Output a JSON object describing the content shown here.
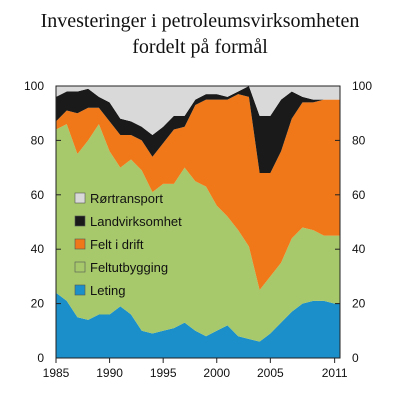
{
  "chart_data": {
    "type": "area",
    "stacked": true,
    "title": "Investeringer i petroleumsvirksomheten fordelt på formål",
    "title_lines": [
      "Investeringer i petroleumsvirksomheten",
      "fordelt på formål"
    ],
    "unit": "percent",
    "x": [
      1985,
      1986,
      1987,
      1988,
      1989,
      1990,
      1991,
      1992,
      1993,
      1994,
      1995,
      1996,
      1997,
      1998,
      1999,
      2000,
      2001,
      2002,
      2003,
      2004,
      2005,
      2006,
      2007,
      2008,
      2009,
      2010,
      2011
    ],
    "xticks": [
      1985,
      1990,
      1995,
      2000,
      2005,
      2011
    ],
    "xlim": [
      1985,
      2011.5
    ],
    "ylim": [
      0,
      100
    ],
    "yticks": [
      0,
      20,
      40,
      60,
      80,
      100
    ],
    "grid": false,
    "legend_position": "center-left",
    "series": [
      {
        "name": "Leting",
        "color": "#1a8fc9",
        "values": [
          24,
          21,
          15,
          14,
          16,
          16,
          19,
          16,
          10,
          9,
          10,
          11,
          13,
          10,
          8,
          10,
          12,
          8,
          7,
          6,
          9,
          13,
          17,
          20,
          21,
          21,
          20
        ]
      },
      {
        "name": "Feltutbygging",
        "color": "#a7c96b",
        "values": [
          60,
          65,
          60,
          66,
          70,
          60,
          51,
          57,
          59,
          52,
          54,
          53,
          57,
          55,
          55,
          46,
          40,
          39,
          34,
          19,
          21,
          22,
          27,
          28,
          26,
          24,
          25
        ]
      },
      {
        "name": "Felt i drift",
        "color": "#f07818",
        "values": [
          3,
          5,
          15,
          12,
          6,
          11,
          12,
          9,
          11,
          13,
          15,
          20,
          15,
          28,
          32,
          39,
          43,
          50,
          55,
          43,
          38,
          41,
          44,
          46,
          47,
          50,
          50
        ]
      },
      {
        "name": "Landvirksomhet",
        "color": "#1a1a1a",
        "values": [
          9,
          7,
          8,
          7,
          4,
          7,
          6,
          5,
          5,
          8,
          6,
          5,
          4,
          2,
          2,
          2,
          1,
          1,
          4,
          21,
          21,
          19,
          10,
          2,
          1,
          0,
          0
        ]
      },
      {
        "name": "Rørtransport",
        "color": "#d9d9d9",
        "values": [
          4,
          2,
          2,
          1,
          4,
          6,
          12,
          13,
          15,
          18,
          15,
          11,
          11,
          5,
          3,
          3,
          4,
          2,
          0,
          11,
          11,
          5,
          2,
          4,
          5,
          5,
          5
        ]
      }
    ],
    "legend_order": [
      "Rørtransport",
      "Landvirksomhet",
      "Felt i drift",
      "Feltutbygging",
      "Leting"
    ]
  }
}
